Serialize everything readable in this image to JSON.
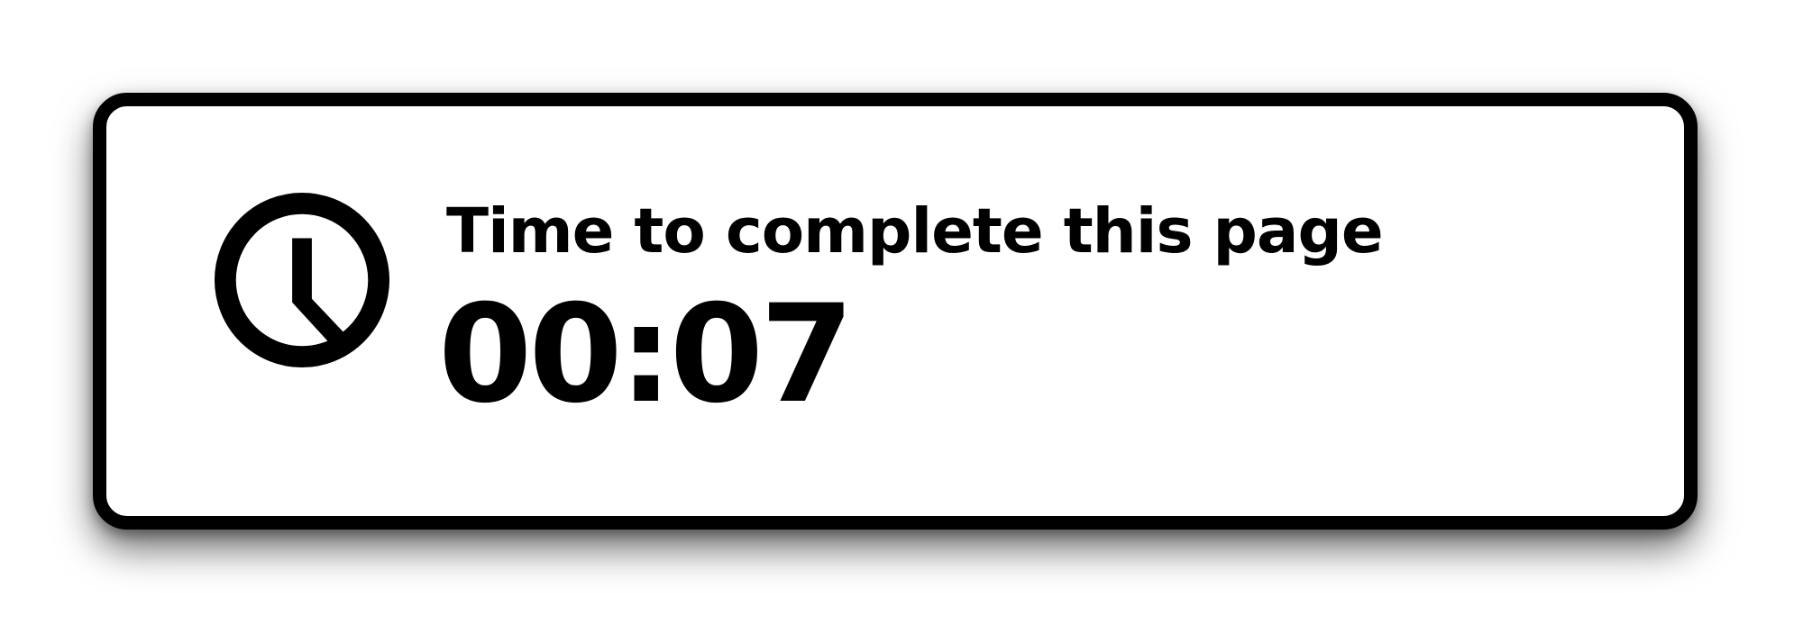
{
  "timer": {
    "icon": "clock-icon",
    "label": "Time to complete this page",
    "value": "00:07"
  },
  "colors": {
    "border": "#000000",
    "background": "#ffffff",
    "text": "#000000"
  }
}
